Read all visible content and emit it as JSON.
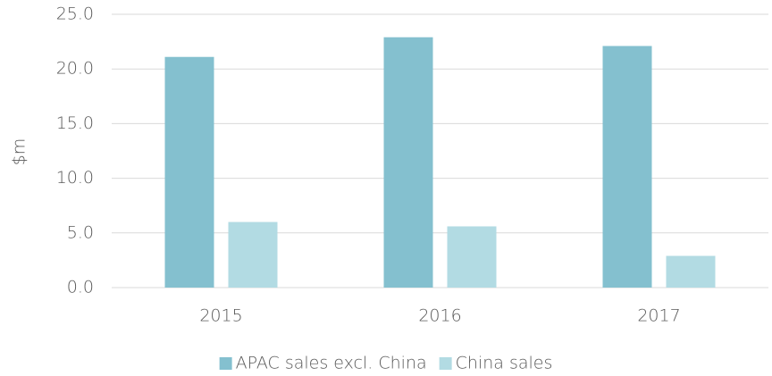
{
  "chart_data": {
    "type": "bar",
    "y_label": "$m",
    "categories": [
      "2015",
      "2016",
      "2017"
    ],
    "series": [
      {
        "name": "APAC sales excl. China",
        "color": "#84c0cf",
        "values": [
          21.1,
          22.9,
          22.1
        ]
      },
      {
        "name": "China sales",
        "color": "#b2dbe3",
        "values": [
          6.0,
          5.6,
          2.9
        ]
      }
    ],
    "ylim": [
      0,
      25
    ],
    "yticks": [
      {
        "value": 0,
        "label": "0.0"
      },
      {
        "value": 5,
        "label": "5.0"
      },
      {
        "value": 10,
        "label": "10.0"
      },
      {
        "value": 15,
        "label": "15.0"
      },
      {
        "value": 20,
        "label": "20.0"
      },
      {
        "value": 25,
        "label": "25.0"
      }
    ],
    "grid": true,
    "legend": "bottom"
  }
}
